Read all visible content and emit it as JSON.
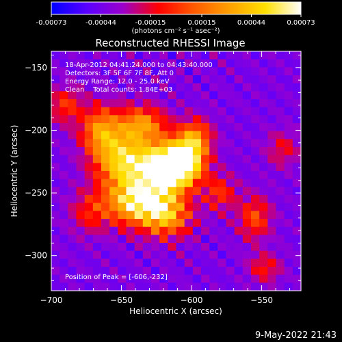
{
  "colorbar": {
    "tick_labels": [
      "-0.00073",
      "-0.00044",
      "-0.00015",
      "0.00015",
      "0.00044",
      "0.00073"
    ],
    "tick_values": [
      -0.00073,
      -0.00044,
      -0.00015,
      0.00015,
      0.00044,
      0.00073
    ],
    "range": [
      -0.00073,
      0.00073
    ],
    "unit": "(photons cm⁻² s⁻¹ asec⁻²)",
    "colors": [
      "#0000ff",
      "#5a00ff",
      "#9b00cc",
      "#ff0000",
      "#ff5a00",
      "#ffa000",
      "#ffe000",
      "#ffffff"
    ]
  },
  "chart_data": {
    "type": "heatmap",
    "title": "Reconstructed RHESSI Image",
    "xlabel": "Heliocentric X (arcsec)",
    "ylabel": "Heliocentric Y (arcsec)",
    "xlim": [
      -700,
      -522
    ],
    "ylim": [
      -328,
      -137
    ],
    "xticks": [
      -700,
      -650,
      -600,
      -550
    ],
    "xtick_labels": [
      "−700",
      "−650",
      "−600",
      "−550"
    ],
    "yticks": [
      -300,
      -250,
      -200,
      -150
    ],
    "ytick_labels": [
      "−300",
      "−250",
      "−200",
      "−150"
    ],
    "peak": {
      "x": -606,
      "y": -232
    },
    "blobs": [
      {
        "x": -665,
        "y": -200,
        "amp": 0.55,
        "sx": 10,
        "sy": 14
      },
      {
        "x": -648,
        "y": -225,
        "amp": 0.8,
        "sx": 14,
        "sy": 16
      },
      {
        "x": -620,
        "y": -232,
        "amp": 1.0,
        "sx": 12,
        "sy": 14
      },
      {
        "x": -605,
        "y": -225,
        "amp": 1.0,
        "sx": 10,
        "sy": 12
      },
      {
        "x": -640,
        "y": -258,
        "amp": 0.8,
        "sx": 14,
        "sy": 12
      },
      {
        "x": -618,
        "y": -268,
        "amp": 0.65,
        "sx": 12,
        "sy": 12
      },
      {
        "x": -635,
        "y": -195,
        "amp": 0.55,
        "sx": 12,
        "sy": 10
      },
      {
        "x": -597,
        "y": -205,
        "amp": 0.5,
        "sx": 8,
        "sy": 10
      },
      {
        "x": -580,
        "y": -250,
        "amp": 0.35,
        "sx": 8,
        "sy": 10
      },
      {
        "x": -555,
        "y": -270,
        "amp": 0.4,
        "sx": 8,
        "sy": 12
      },
      {
        "x": -548,
        "y": -310,
        "amp": 0.3,
        "sx": 8,
        "sy": 8
      },
      {
        "x": -690,
        "y": -180,
        "amp": 0.35,
        "sx": 8,
        "sy": 10
      },
      {
        "x": -672,
        "y": -265,
        "amp": 0.3,
        "sx": 10,
        "sy": 12
      },
      {
        "x": -535,
        "y": -215,
        "amp": 0.25,
        "sx": 8,
        "sy": 10
      }
    ],
    "annotations": [
      "18-Apr-2012 04:41:24.000 to 04:43:40.000",
      "Detectors: 3F 5F 6F 7F 8F, Att 0",
      "Energy Range: 12.0 - 25.0 keV",
      "Clean    Total counts: 1.84E+03"
    ],
    "peak_label": "Position of Peak = [-606,-232]"
  },
  "footer": {
    "timestamp": "9-May-2022 21:43"
  }
}
